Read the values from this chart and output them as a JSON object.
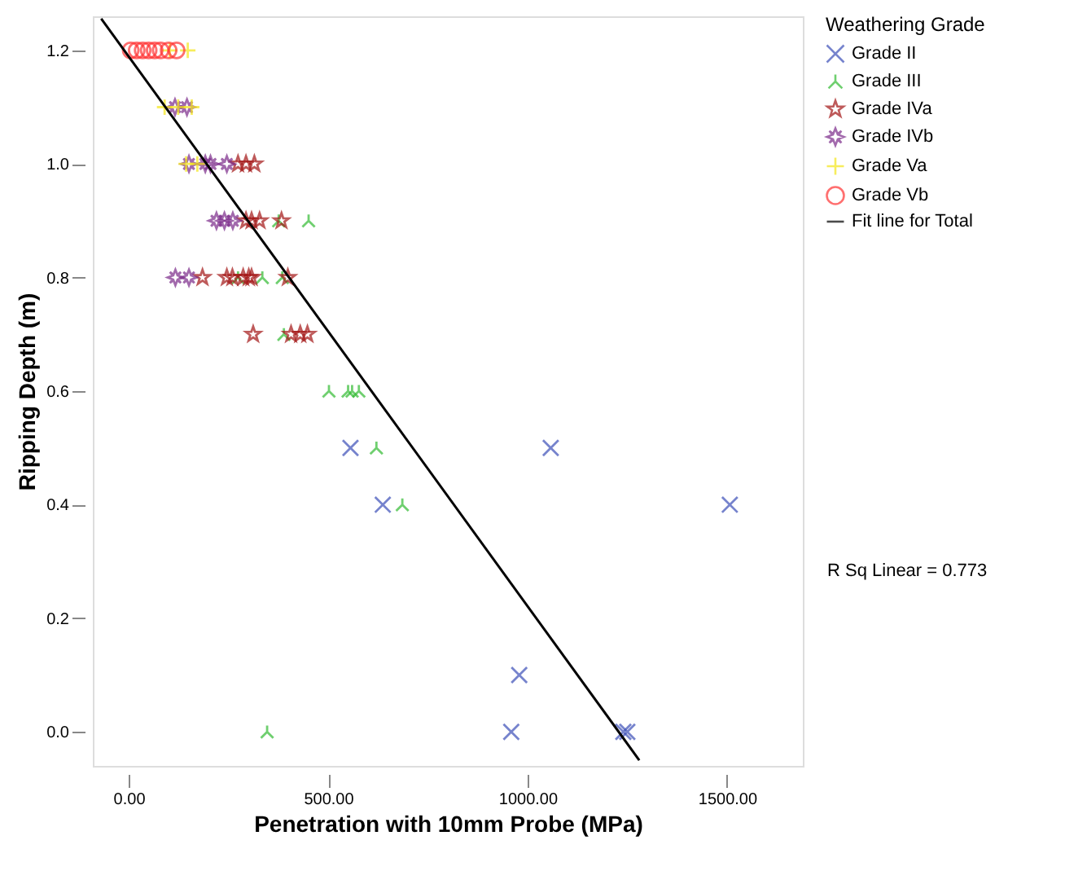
{
  "chart_data": {
    "type": "scatter",
    "xlabel": "Penetration with 10mm Probe (MPa)",
    "ylabel": "Ripping Depth (m)",
    "legend_title": "Weathering Grade",
    "legend": "right",
    "grid": false,
    "xlim": [
      -90,
      1690
    ],
    "ylim": [
      -0.06,
      1.26
    ],
    "xticks": [
      {
        "value": 0,
        "label": "0.00"
      },
      {
        "value": 500,
        "label": "500.00"
      },
      {
        "value": 1000,
        "label": "1000.00"
      },
      {
        "value": 1500,
        "label": "1500.00"
      }
    ],
    "yticks": [
      {
        "value": 0,
        "label": "0.0"
      },
      {
        "value": 0.2,
        "label": "0.2"
      },
      {
        "value": 0.4,
        "label": "0.4"
      },
      {
        "value": 0.6,
        "label": "0.6"
      },
      {
        "value": 0.8,
        "label": "0.8"
      },
      {
        "value": 1.0,
        "label": "1.0"
      },
      {
        "value": 1.2,
        "label": "1.2"
      }
    ],
    "annotations": [
      "R Sq Linear = 0.773"
    ],
    "series": [
      {
        "name": "Grade II",
        "color": "#3d50b8",
        "marker": "cross",
        "x": [
          556,
          1058,
          637,
          1507,
          979,
          959,
          1240,
          1250
        ],
        "values": [
          0.5,
          0.5,
          0.4,
          0.4,
          0.1,
          0.0,
          0.0,
          0.0
        ]
      },
      {
        "name": "Grade III",
        "color": "#33bb33",
        "x": [
          376,
          451,
          274,
          335,
          385,
          389,
          502,
          550,
          560,
          577,
          621,
          686,
          347
        ],
        "values": [
          0.9,
          0.9,
          0.8,
          0.8,
          0.8,
          0.7,
          0.6,
          0.6,
          0.6,
          0.6,
          0.5,
          0.4,
          0.0
        ]
      },
      {
        "name": "Grade IVa",
        "color": "#a31515",
        "marker": "star",
        "x": [
          274,
          294,
          315,
          294,
          308,
          328,
          383,
          185,
          246,
          260,
          287,
          301,
          308,
          399,
          312,
          407,
          430,
          448
        ],
        "values": [
          1.0,
          1.0,
          1.0,
          0.9,
          0.9,
          0.9,
          0.9,
          0.8,
          0.8,
          0.8,
          0.8,
          0.8,
          0.8,
          0.8,
          0.7,
          0.7,
          0.7,
          0.7
        ]
      },
      {
        "name": "Grade IVb",
        "color": "#7b2a8a",
        "marker": "diamond",
        "x": [
          116,
          146,
          151,
          192,
          205,
          246,
          220,
          240,
          261,
          117,
          151
        ],
        "values": [
          1.1,
          1.1,
          1.0,
          1.0,
          1.0,
          1.0,
          0.9,
          0.9,
          0.9,
          0.8,
          0.8
        ]
      },
      {
        "name": "Grade Va",
        "color": "#f5e61a",
        "x": [
          103,
          148,
          90,
          124,
          158,
          144,
          172
        ],
        "values": [
          1.2,
          1.2,
          1.1,
          1.1,
          1.1,
          1.0,
          1.0
        ]
      },
      {
        "name": "Grade Vb",
        "color": "#ff3333",
        "marker": "circle",
        "x": [
          5,
          20,
          35,
          50,
          65,
          80,
          100,
          120
        ],
        "values": [
          1.2,
          1.2,
          1.2,
          1.2,
          1.2,
          1.2,
          1.2,
          1.2
        ]
      },
      {
        "name": "Fit line for Total",
        "type": "line",
        "color": "#000000",
        "x": [
          -69,
          1280
        ],
        "values": [
          1.256,
          -0.05
        ]
      }
    ]
  }
}
